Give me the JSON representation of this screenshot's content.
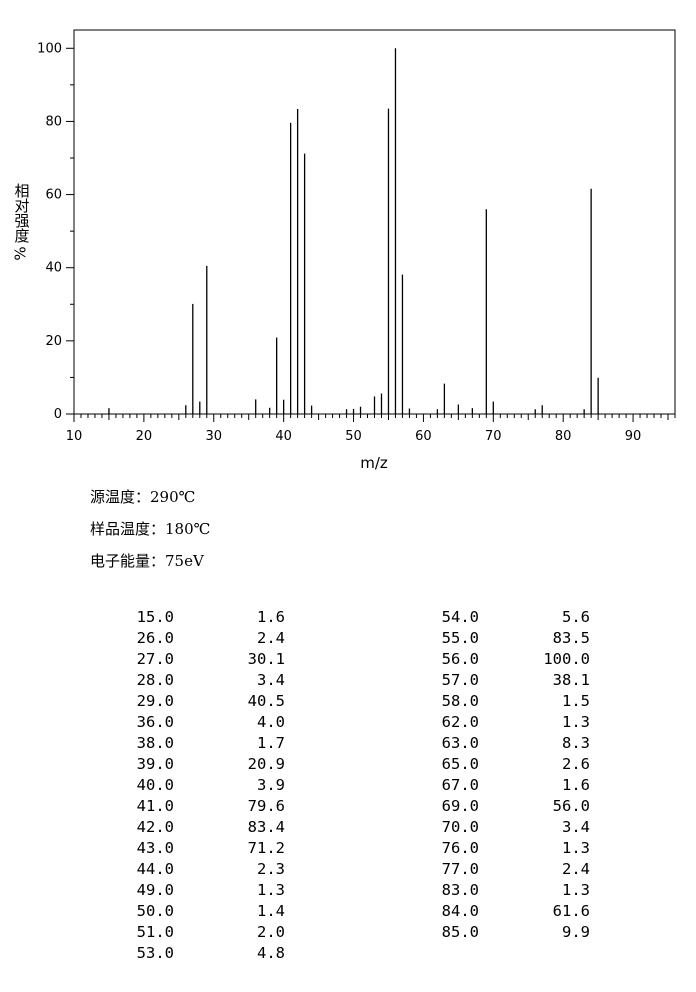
{
  "chart_data": {
    "type": "bar",
    "xlabel": "m/z",
    "ylabel": "相对强度",
    "ylabel_unit": "%",
    "xlim": [
      10,
      96
    ],
    "ylim": [
      0,
      105
    ],
    "x_ticks": [
      10,
      20,
      30,
      40,
      50,
      60,
      70,
      80,
      90
    ],
    "y_ticks": [
      0,
      20,
      40,
      60,
      80,
      100
    ],
    "peaks": [
      {
        "mz": 15.0,
        "intensity": 1.6
      },
      {
        "mz": 26.0,
        "intensity": 2.4
      },
      {
        "mz": 27.0,
        "intensity": 30.1
      },
      {
        "mz": 28.0,
        "intensity": 3.4
      },
      {
        "mz": 29.0,
        "intensity": 40.5
      },
      {
        "mz": 36.0,
        "intensity": 4.0
      },
      {
        "mz": 38.0,
        "intensity": 1.7
      },
      {
        "mz": 39.0,
        "intensity": 20.9
      },
      {
        "mz": 40.0,
        "intensity": 3.9
      },
      {
        "mz": 41.0,
        "intensity": 79.6
      },
      {
        "mz": 42.0,
        "intensity": 83.4
      },
      {
        "mz": 43.0,
        "intensity": 71.2
      },
      {
        "mz": 44.0,
        "intensity": 2.3
      },
      {
        "mz": 49.0,
        "intensity": 1.3
      },
      {
        "mz": 50.0,
        "intensity": 1.4
      },
      {
        "mz": 51.0,
        "intensity": 2.0
      },
      {
        "mz": 53.0,
        "intensity": 4.8
      },
      {
        "mz": 54.0,
        "intensity": 5.6
      },
      {
        "mz": 55.0,
        "intensity": 83.5
      },
      {
        "mz": 56.0,
        "intensity": 100.0
      },
      {
        "mz": 57.0,
        "intensity": 38.1
      },
      {
        "mz": 58.0,
        "intensity": 1.5
      },
      {
        "mz": 62.0,
        "intensity": 1.3
      },
      {
        "mz": 63.0,
        "intensity": 8.3
      },
      {
        "mz": 65.0,
        "intensity": 2.6
      },
      {
        "mz": 67.0,
        "intensity": 1.6
      },
      {
        "mz": 69.0,
        "intensity": 56.0
      },
      {
        "mz": 70.0,
        "intensity": 3.4
      },
      {
        "mz": 76.0,
        "intensity": 1.3
      },
      {
        "mz": 77.0,
        "intensity": 2.4
      },
      {
        "mz": 83.0,
        "intensity": 1.3
      },
      {
        "mz": 84.0,
        "intensity": 61.6
      },
      {
        "mz": 85.0,
        "intensity": 9.9
      }
    ],
    "grid": false
  },
  "conditions": [
    "源温度：290℃",
    "样品温度：180℃",
    "电子能量：75eV"
  ],
  "peak_table": {
    "left": [
      [
        "15.0",
        "1.6"
      ],
      [
        "26.0",
        "2.4"
      ],
      [
        "27.0",
        "30.1"
      ],
      [
        "28.0",
        "3.4"
      ],
      [
        "29.0",
        "40.5"
      ],
      [
        "36.0",
        "4.0"
      ],
      [
        "38.0",
        "1.7"
      ],
      [
        "39.0",
        "20.9"
      ],
      [
        "40.0",
        "3.9"
      ],
      [
        "41.0",
        "79.6"
      ],
      [
        "42.0",
        "83.4"
      ],
      [
        "43.0",
        "71.2"
      ],
      [
        "44.0",
        "2.3"
      ],
      [
        "49.0",
        "1.3"
      ],
      [
        "50.0",
        "1.4"
      ],
      [
        "51.0",
        "2.0"
      ],
      [
        "53.0",
        "4.8"
      ]
    ],
    "right": [
      [
        "54.0",
        "5.6"
      ],
      [
        "55.0",
        "83.5"
      ],
      [
        "56.0",
        "100.0"
      ],
      [
        "57.0",
        "38.1"
      ],
      [
        "58.0",
        "1.5"
      ],
      [
        "62.0",
        "1.3"
      ],
      [
        "63.0",
        "8.3"
      ],
      [
        "65.0",
        "2.6"
      ],
      [
        "67.0",
        "1.6"
      ],
      [
        "69.0",
        "56.0"
      ],
      [
        "70.0",
        "3.4"
      ],
      [
        "76.0",
        "1.3"
      ],
      [
        "77.0",
        "2.4"
      ],
      [
        "83.0",
        "1.3"
      ],
      [
        "84.0",
        "61.6"
      ],
      [
        "85.0",
        "9.9"
      ]
    ]
  }
}
